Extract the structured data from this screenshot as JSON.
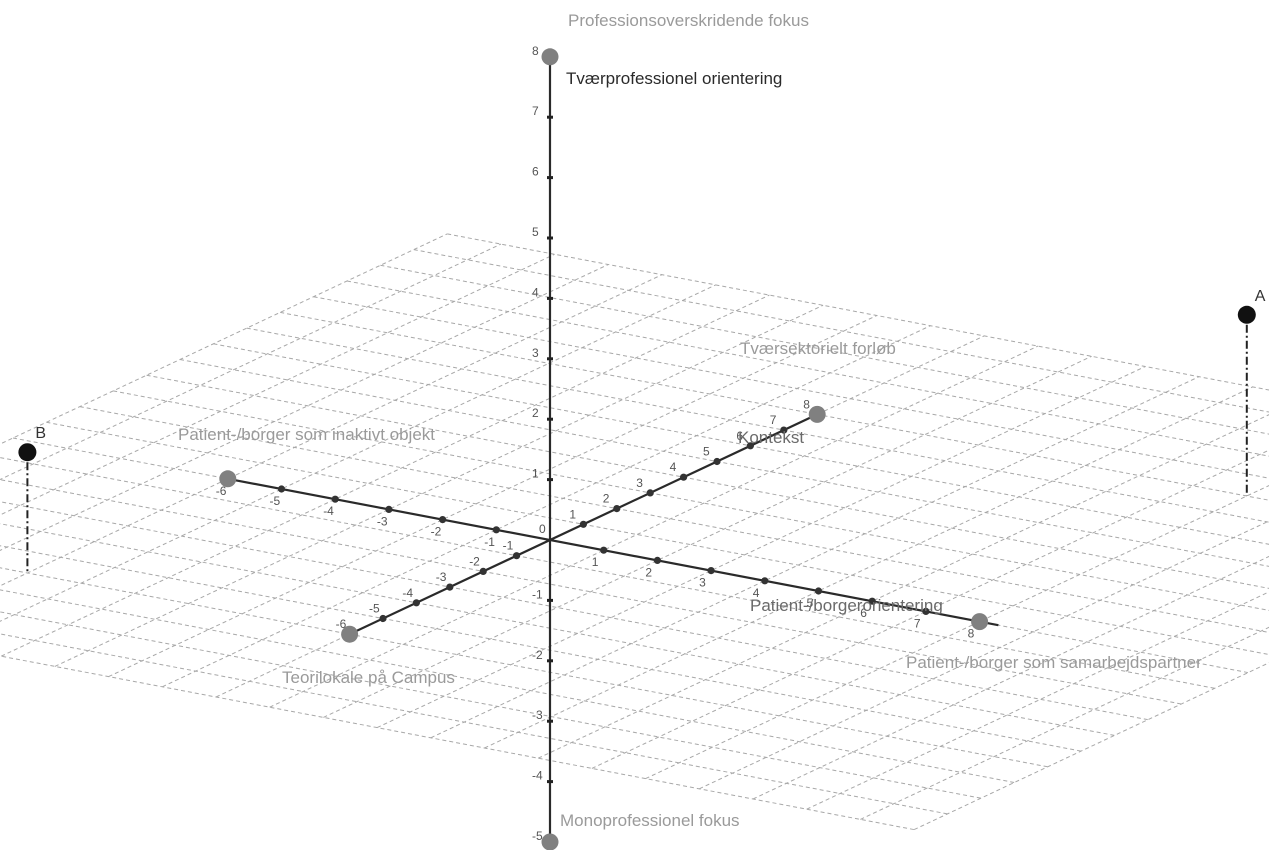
{
  "labels": {
    "top": "Professionsoverskridende fokus",
    "z_axis": "Tværprofessionel orientering",
    "bottom": "Monoprofessionel fokus",
    "context_end": "Tværsektorielt forløb",
    "context_axis": "Kontekst",
    "campus": "Teorilokale på Campus",
    "passive": "Patient-/borger som inaktivt objekt",
    "patient_axis": "Patient-/borgerorientering",
    "partner": "Patient-/borger som samarbejdspartner",
    "origin": "0"
  },
  "points": [
    {
      "name": "A",
      "label": "A",
      "x": 8,
      "y": 8,
      "z": 3
    },
    {
      "name": "B",
      "label": "B",
      "x": -6,
      "y": -6,
      "z": 2
    }
  ],
  "axes": {
    "x": {
      "min": -6,
      "max": 8
    },
    "y": {
      "min": -6,
      "max": 8
    },
    "z": {
      "min": -5,
      "max": 8
    }
  },
  "colors": {
    "axis": "#2a2a2a",
    "grid": "#a8a8a8",
    "end_point": "#808080",
    "named_point": "#111111",
    "label_grey": "#9a9a9a"
  }
}
